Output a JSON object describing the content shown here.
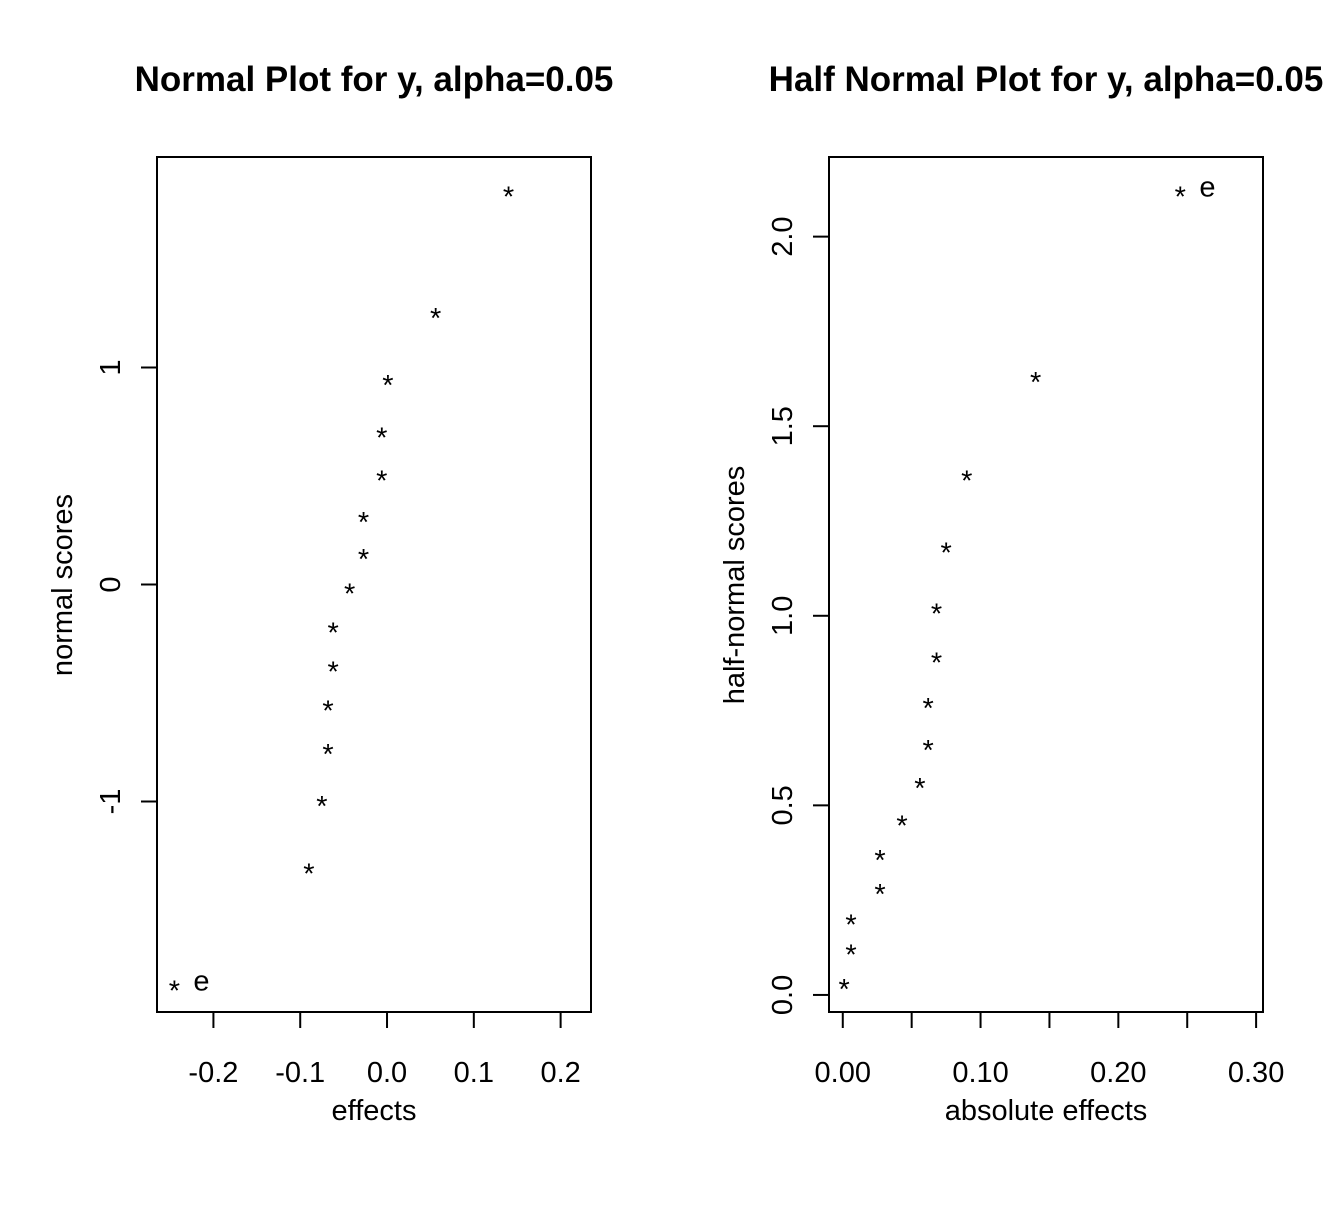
{
  "chart_data": [
    {
      "type": "scatter",
      "title": "Normal Plot for y, alpha=0.05",
      "xlabel": "effects",
      "ylabel": "normal scores",
      "xlim": [
        -0.265,
        0.235
      ],
      "ylim": [
        -1.97,
        1.97
      ],
      "xticks": [
        -0.2,
        -0.1,
        0.0,
        0.1,
        0.2
      ],
      "xtick_labels": [
        "-0.2",
        "-0.1",
        "0.0",
        "0.1",
        "0.2"
      ],
      "yticks": [
        -1,
        0,
        1
      ],
      "ytick_labels": [
        "-1",
        "0",
        "1"
      ],
      "marker": "*",
      "points": [
        {
          "x": -0.245,
          "y": -1.83,
          "label": "e"
        },
        {
          "x": -0.09,
          "y": -1.29,
          "label": ""
        },
        {
          "x": -0.075,
          "y": -0.98,
          "label": ""
        },
        {
          "x": -0.068,
          "y": -0.74,
          "label": ""
        },
        {
          "x": -0.068,
          "y": -0.54,
          "label": ""
        },
        {
          "x": -0.062,
          "y": -0.36,
          "label": ""
        },
        {
          "x": -0.062,
          "y": -0.18,
          "label": ""
        },
        {
          "x": -0.043,
          "y": 0.0,
          "label": ""
        },
        {
          "x": -0.027,
          "y": 0.16,
          "label": ""
        },
        {
          "x": -0.027,
          "y": 0.33,
          "label": ""
        },
        {
          "x": -0.006,
          "y": 0.52,
          "label": ""
        },
        {
          "x": -0.006,
          "y": 0.72,
          "label": ""
        },
        {
          "x": 0.001,
          "y": 0.96,
          "label": ""
        },
        {
          "x": 0.056,
          "y": 1.27,
          "label": ""
        },
        {
          "x": 0.14,
          "y": 1.83,
          "label": ""
        }
      ]
    },
    {
      "type": "scatter",
      "title": "Half Normal Plot for y, alpha=0.05",
      "xlabel": "absolute effects",
      "ylabel": "half-normal scores",
      "xlim": [
        -0.01,
        0.305
      ],
      "ylim": [
        -0.045,
        2.21
      ],
      "xticks": [
        0.0,
        0.05,
        0.1,
        0.15,
        0.2,
        0.25,
        0.3
      ],
      "xtick_labels": [
        "0.00",
        "",
        "0.10",
        "",
        "0.20",
        "",
        "0.30"
      ],
      "yticks": [
        0.0,
        0.5,
        1.0,
        1.5,
        2.0
      ],
      "ytick_labels": [
        "0.0",
        "0.5",
        "1.0",
        "1.5",
        "2.0"
      ],
      "marker": "*",
      "points": [
        {
          "x": 0.001,
          "y": 0.04,
          "label": ""
        },
        {
          "x": 0.006,
          "y": 0.13,
          "label": ""
        },
        {
          "x": 0.006,
          "y": 0.21,
          "label": ""
        },
        {
          "x": 0.027,
          "y": 0.29,
          "label": ""
        },
        {
          "x": 0.027,
          "y": 0.38,
          "label": ""
        },
        {
          "x": 0.043,
          "y": 0.47,
          "label": ""
        },
        {
          "x": 0.056,
          "y": 0.57,
          "label": ""
        },
        {
          "x": 0.062,
          "y": 0.67,
          "label": ""
        },
        {
          "x": 0.062,
          "y": 0.78,
          "label": ""
        },
        {
          "x": 0.068,
          "y": 0.9,
          "label": ""
        },
        {
          "x": 0.068,
          "y": 1.03,
          "label": ""
        },
        {
          "x": 0.075,
          "y": 1.19,
          "label": ""
        },
        {
          "x": 0.09,
          "y": 1.38,
          "label": ""
        },
        {
          "x": 0.14,
          "y": 1.64,
          "label": ""
        },
        {
          "x": 0.245,
          "y": 2.13,
          "label": "e"
        }
      ]
    }
  ]
}
